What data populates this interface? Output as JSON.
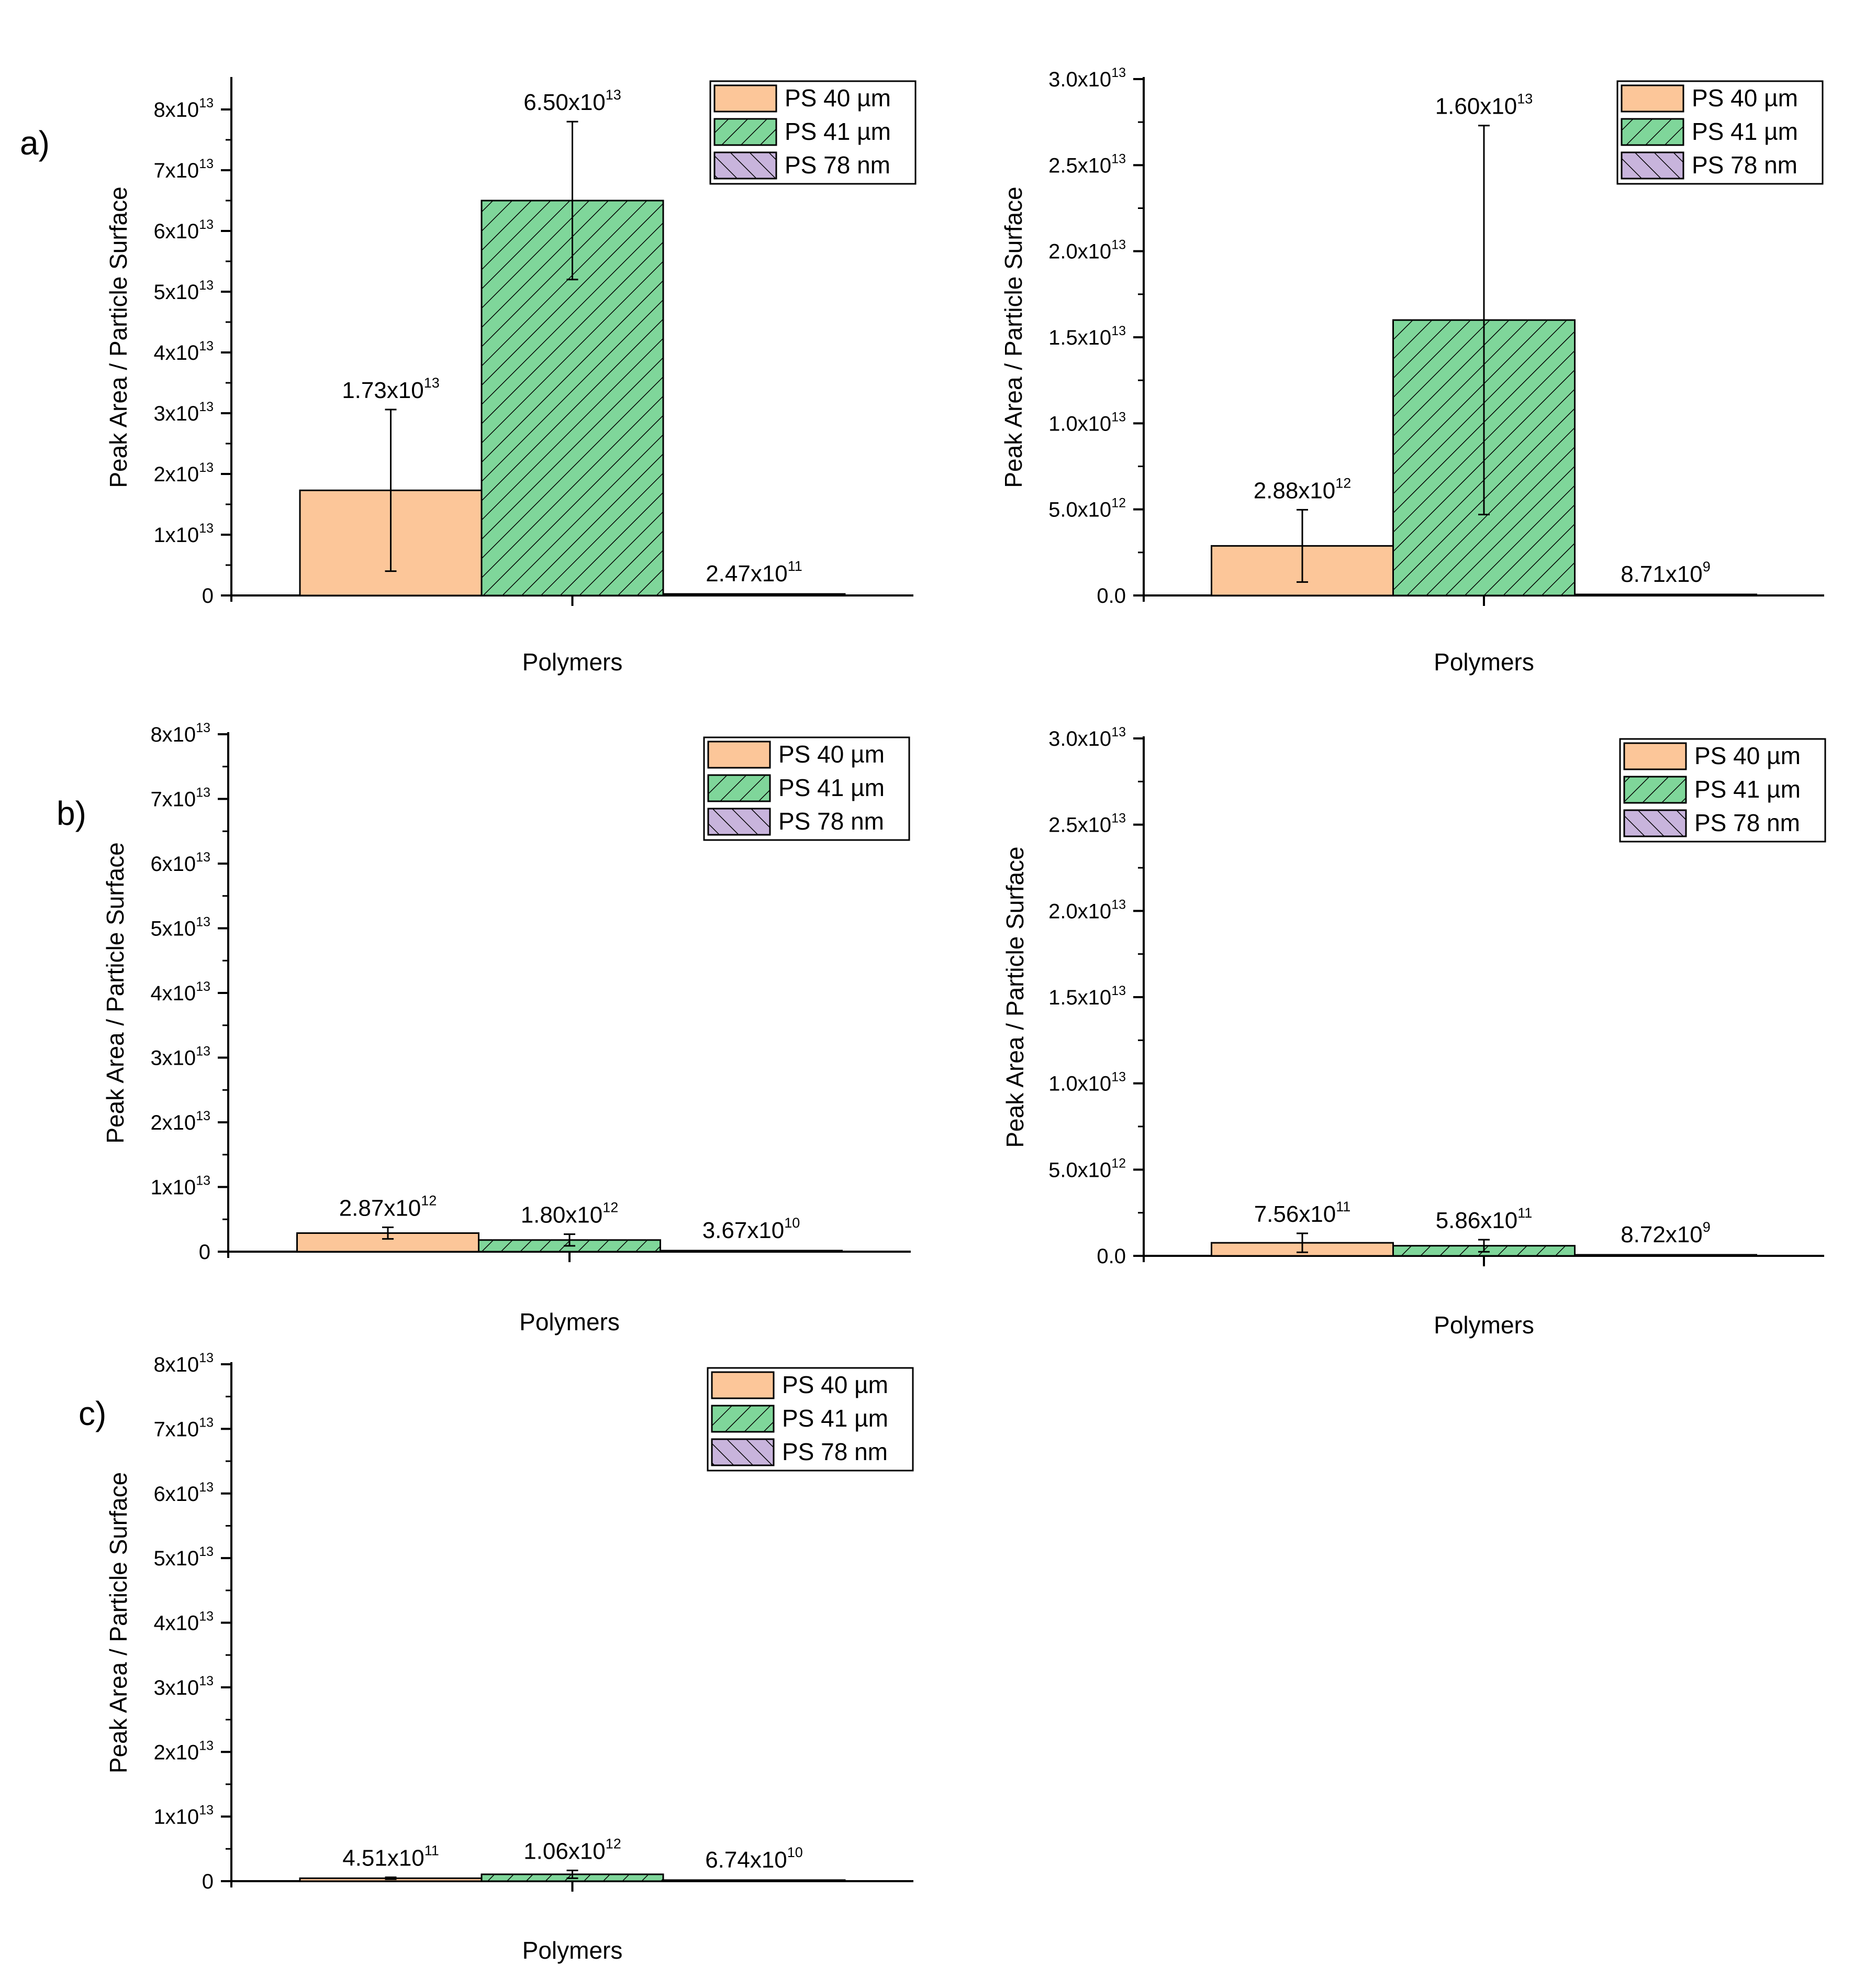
{
  "panel_labels": [
    "a)",
    "b)",
    "c)"
  ],
  "chart_data": [
    {
      "type": "bar",
      "panel": "a)",
      "title": "",
      "categories": [
        "Polymers"
      ],
      "xlabel": "Polymers",
      "ylabel": "Peak Area / Particle Surface",
      "ylim": [
        0,
        85000000000000.0
      ],
      "yticks": [
        {
          "v": 0,
          "m": "0",
          "e": ""
        },
        {
          "v": 10000000000000.0,
          "m": "1x10",
          "e": "13"
        },
        {
          "v": 20000000000000.0,
          "m": "2x10",
          "e": "13"
        },
        {
          "v": 30000000000000.0,
          "m": "3x10",
          "e": "13"
        },
        {
          "v": 40000000000000.0,
          "m": "4x10",
          "e": "13"
        },
        {
          "v": 50000000000000.0,
          "m": "5x10",
          "e": "13"
        },
        {
          "v": 60000000000000.0,
          "m": "6x10",
          "e": "13"
        },
        {
          "v": 70000000000000.0,
          "m": "7x10",
          "e": "13"
        },
        {
          "v": 80000000000000.0,
          "m": "8x10",
          "e": "13"
        }
      ],
      "legend": "top-right",
      "grid": false,
      "series": [
        {
          "name": "PS 40 µm",
          "value": 17300000000000.0,
          "error": 13300000000000.0,
          "label_m": "1.73x10",
          "label_e": "13"
        },
        {
          "name": "PS 41 µm",
          "value": 65000000000000.0,
          "error": 13000000000000.0,
          "label_m": "6.50x10",
          "label_e": "13"
        },
        {
          "name": "PS 78 nm",
          "value": 247000000000.0,
          "error": 0,
          "label_m": "2.47x10",
          "label_e": "11"
        }
      ]
    },
    {
      "type": "bar",
      "panel": "a)",
      "title": "",
      "categories": [
        "Polymers"
      ],
      "xlabel": "Polymers",
      "ylabel": "Peak Area / Particle Surface",
      "ylim": [
        0,
        30000000000000.0
      ],
      "yticks": [
        {
          "v": 0,
          "m": "0.0",
          "e": ""
        },
        {
          "v": 5000000000000.0,
          "m": "5.0x10",
          "e": "12"
        },
        {
          "v": 10000000000000.0,
          "m": "1.0x10",
          "e": "13"
        },
        {
          "v": 15000000000000.0,
          "m": "1.5x10",
          "e": "13"
        },
        {
          "v": 20000000000000.0,
          "m": "2.0x10",
          "e": "13"
        },
        {
          "v": 25000000000000.0,
          "m": "2.5x10",
          "e": "13"
        },
        {
          "v": 30000000000000.0,
          "m": "3.0x10",
          "e": "13"
        }
      ],
      "legend": "top-right",
      "grid": false,
      "series": [
        {
          "name": "PS 40 µm",
          "value": 2880000000000.0,
          "error": 2100000000000.0,
          "label_m": "2.88x10",
          "label_e": "12"
        },
        {
          "name": "PS 41 µm",
          "value": 16000000000000.0,
          "error": 11300000000000.0,
          "label_m": "1.60x10",
          "label_e": "13"
        },
        {
          "name": "PS 78 nm",
          "value": 8710000000.0,
          "error": 0,
          "label_m": "8.71x10",
          "label_e": "9"
        }
      ]
    },
    {
      "type": "bar",
      "panel": "b)",
      "title": "",
      "categories": [
        "Polymers"
      ],
      "xlabel": "Polymers",
      "ylabel": "Peak Area / Particle Surface",
      "ylim": [
        0,
        80000000000000.0
      ],
      "yticks": [
        {
          "v": 0,
          "m": "0",
          "e": ""
        },
        {
          "v": 10000000000000.0,
          "m": "1x10",
          "e": "13"
        },
        {
          "v": 20000000000000.0,
          "m": "2x10",
          "e": "13"
        },
        {
          "v": 30000000000000.0,
          "m": "3x10",
          "e": "13"
        },
        {
          "v": 40000000000000.0,
          "m": "4x10",
          "e": "13"
        },
        {
          "v": 50000000000000.0,
          "m": "5x10",
          "e": "13"
        },
        {
          "v": 60000000000000.0,
          "m": "6x10",
          "e": "13"
        },
        {
          "v": 70000000000000.0,
          "m": "7x10",
          "e": "13"
        },
        {
          "v": 80000000000000.0,
          "m": "8x10",
          "e": "13"
        }
      ],
      "legend": "top-right",
      "grid": false,
      "series": [
        {
          "name": "PS 40 µm",
          "value": 2870000000000.0,
          "error": 900000000000.0,
          "label_m": "2.87x10",
          "label_e": "12"
        },
        {
          "name": "PS 41 µm",
          "value": 1800000000000.0,
          "error": 900000000000.0,
          "label_m": "1.80x10",
          "label_e": "12"
        },
        {
          "name": "PS 78 nm",
          "value": 36700000000.0,
          "error": 0,
          "label_m": "3.67x10",
          "label_e": "10"
        }
      ]
    },
    {
      "type": "bar",
      "panel": "b)",
      "title": "",
      "categories": [
        "Polymers"
      ],
      "xlabel": "Polymers",
      "ylabel": "Peak Area / Particle Surface",
      "ylim": [
        0,
        30000000000000.0
      ],
      "yticks": [
        {
          "v": 0,
          "m": "0.0",
          "e": ""
        },
        {
          "v": 5000000000000.0,
          "m": "5.0x10",
          "e": "12"
        },
        {
          "v": 10000000000000.0,
          "m": "1.0x10",
          "e": "13"
        },
        {
          "v": 15000000000000.0,
          "m": "1.5x10",
          "e": "13"
        },
        {
          "v": 20000000000000.0,
          "m": "2.0x10",
          "e": "13"
        },
        {
          "v": 25000000000000.0,
          "m": "2.5x10",
          "e": "13"
        },
        {
          "v": 30000000000000.0,
          "m": "3.0x10",
          "e": "13"
        }
      ],
      "legend": "top-right",
      "grid": false,
      "series": [
        {
          "name": "PS 40 µm",
          "value": 756000000000.0,
          "error": 550000000000.0,
          "label_m": "7.56x10",
          "label_e": "11"
        },
        {
          "name": "PS 41 µm",
          "value": 586000000000.0,
          "error": 350000000000.0,
          "label_m": "5.86x10",
          "label_e": "11"
        },
        {
          "name": "PS 78 nm",
          "value": 8720000000.0,
          "error": 0,
          "label_m": "8.72x10",
          "label_e": "9"
        }
      ]
    },
    {
      "type": "bar",
      "panel": "c)",
      "title": "",
      "categories": [
        "Polymers"
      ],
      "xlabel": "Polymers",
      "ylabel": "Peak Area / Particle Surface",
      "ylim": [
        0,
        80000000000000.0
      ],
      "yticks": [
        {
          "v": 0,
          "m": "0",
          "e": ""
        },
        {
          "v": 10000000000000.0,
          "m": "1x10",
          "e": "13"
        },
        {
          "v": 20000000000000.0,
          "m": "2x10",
          "e": "13"
        },
        {
          "v": 30000000000000.0,
          "m": "3x10",
          "e": "13"
        },
        {
          "v": 40000000000000.0,
          "m": "4x10",
          "e": "13"
        },
        {
          "v": 50000000000000.0,
          "m": "5x10",
          "e": "13"
        },
        {
          "v": 60000000000000.0,
          "m": "6x10",
          "e": "13"
        },
        {
          "v": 70000000000000.0,
          "m": "7x10",
          "e": "13"
        },
        {
          "v": 80000000000000.0,
          "m": "8x10",
          "e": "13"
        }
      ],
      "legend": "top-right",
      "grid": false,
      "series": [
        {
          "name": "PS 40 µm",
          "value": 451000000000.0,
          "error": 150000000000.0,
          "label_m": "4.51x10",
          "label_e": "11"
        },
        {
          "name": "PS 41 µm",
          "value": 1060000000000.0,
          "error": 600000000000.0,
          "label_m": "1.06x10",
          "label_e": "12"
        },
        {
          "name": "PS 78 nm",
          "value": 67400000000.0,
          "error": 0,
          "label_m": "6.74x10",
          "label_e": "10"
        }
      ]
    }
  ],
  "colors": {
    "ps40_fill": "#fcc699",
    "ps41_fill": "#7fd69a",
    "ps78_fill": "#c8b4dc",
    "axis": "#000000"
  }
}
